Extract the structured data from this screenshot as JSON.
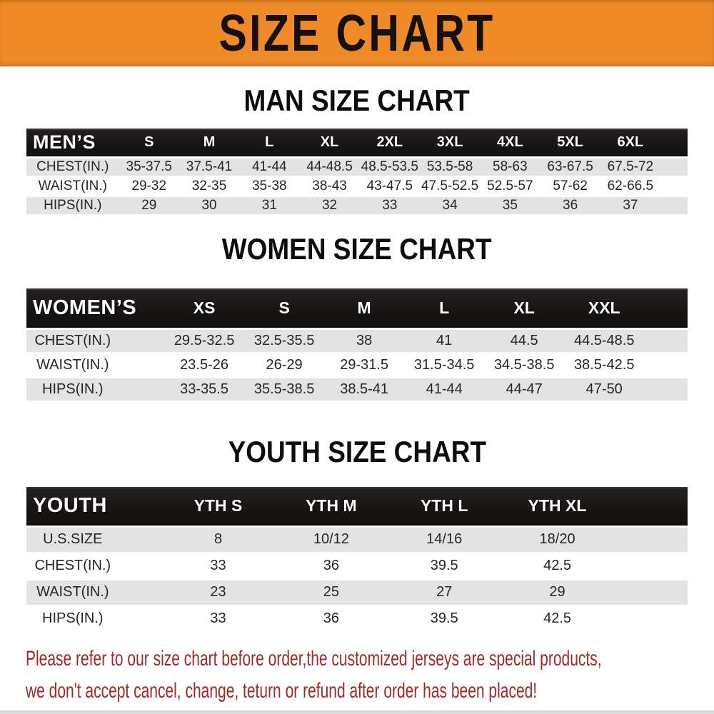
{
  "banner": {
    "title": "SIZE CHART"
  },
  "palette": {
    "banner_orange": "#ee8b28",
    "header_bar_black": "#1b1717",
    "row_stripe_gray": "#e3e3e3",
    "value_text": "#262626",
    "warning_red": "#a02a26"
  },
  "sections": [
    {
      "id": "men",
      "heading": "MAN SIZE CHART",
      "header_label": "MEN’S",
      "columns": [
        "S",
        "M",
        "L",
        "XL",
        "2XL",
        "3XL",
        "4XL",
        "5XL",
        "6XL"
      ],
      "rows": [
        {
          "label": "CHEST(IN.)",
          "values": [
            "35-37.5",
            "37.5-41",
            "41-44",
            "44-48.5",
            "48.5-53.5",
            "53.5-58",
            "58-63",
            "63-67.5",
            "67.5-72"
          ]
        },
        {
          "label": "WAIST(IN.)",
          "values": [
            "29-32",
            "32-35",
            "35-38",
            "38-43",
            "43-47.5",
            "47.5-52.5",
            "52.5-57",
            "57-62",
            "62-66.5"
          ]
        },
        {
          "label": "HIPS(IN.)",
          "values": [
            "29",
            "30",
            "31",
            "32",
            "33",
            "34",
            "35",
            "36",
            "37"
          ]
        }
      ]
    },
    {
      "id": "women",
      "heading": "WOMEN SIZE CHART",
      "header_label": "WOMEN’S",
      "columns": [
        "XS",
        "S",
        "M",
        "L",
        "XL",
        "XXL"
      ],
      "rows": [
        {
          "label": "CHEST(IN.)",
          "values": [
            "29.5-32.5",
            "32.5-35.5",
            "38",
            "41",
            "44.5",
            "44.5-48.5"
          ]
        },
        {
          "label": "WAIST(IN.)",
          "values": [
            "23.5-26",
            "26-29",
            "29-31.5",
            "31.5-34.5",
            "34.5-38.5",
            "38.5-42.5"
          ]
        },
        {
          "label": "HIPS(IN.)",
          "values": [
            "33-35.5",
            "35.5-38.5",
            "38.5-41",
            "41-44",
            "44-47",
            "47-50"
          ]
        }
      ]
    },
    {
      "id": "youth",
      "heading": "YOUTH SIZE CHART",
      "header_label": "YOUTH",
      "columns": [
        "YTH S",
        "YTH M",
        "YTH L",
        "YTH XL"
      ],
      "rows": [
        {
          "label": "U.S.SIZE",
          "values": [
            "8",
            "10/12",
            "14/16",
            "18/20"
          ]
        },
        {
          "label": "CHEST(IN.)",
          "values": [
            "33",
            "36",
            "39.5",
            "42.5"
          ]
        },
        {
          "label": "WAIST(IN.)",
          "values": [
            "23",
            "25",
            "27",
            "29"
          ]
        },
        {
          "label": "HIPS(IN.)",
          "values": [
            "33",
            "36",
            "39.5",
            "42.5"
          ]
        }
      ]
    }
  ],
  "footer": {
    "lines": [
      "Please refer to our size chart before order,the customized jerseys are special products,",
      "we don't accept cancel, change, teturn or refund after order has been placed!"
    ]
  },
  "chart_data": [
    {
      "type": "table",
      "title": "MAN SIZE CHART",
      "columns": [
        "MEN’S",
        "S",
        "M",
        "L",
        "XL",
        "2XL",
        "3XL",
        "4XL",
        "5XL",
        "6XL"
      ],
      "rows": [
        [
          "CHEST(IN.)",
          "35-37.5",
          "37.5-41",
          "41-44",
          "44-48.5",
          "48.5-53.5",
          "53.5-58",
          "58-63",
          "63-67.5",
          "67.5-72"
        ],
        [
          "WAIST(IN.)",
          "29-32",
          "32-35",
          "35-38",
          "38-43",
          "43-47.5",
          "47.5-52.5",
          "52.5-57",
          "57-62",
          "62-66.5"
        ],
        [
          "HIPS(IN.)",
          "29",
          "30",
          "31",
          "32",
          "33",
          "34",
          "35",
          "36",
          "37"
        ]
      ]
    },
    {
      "type": "table",
      "title": "WOMEN SIZE CHART",
      "columns": [
        "WOMEN’S",
        "XS",
        "S",
        "M",
        "L",
        "XL",
        "XXL"
      ],
      "rows": [
        [
          "CHEST(IN.)",
          "29.5-32.5",
          "32.5-35.5",
          "38",
          "41",
          "44.5",
          "44.5-48.5"
        ],
        [
          "WAIST(IN.)",
          "23.5-26",
          "26-29",
          "29-31.5",
          "31.5-34.5",
          "34.5-38.5",
          "38.5-42.5"
        ],
        [
          "HIPS(IN.)",
          "33-35.5",
          "35.5-38.5",
          "38.5-41",
          "41-44",
          "44-47",
          "47-50"
        ]
      ]
    },
    {
      "type": "table",
      "title": "YOUTH SIZE CHART",
      "columns": [
        "YOUTH",
        "YTH S",
        "YTH M",
        "YTH L",
        "YTH XL"
      ],
      "rows": [
        [
          "U.S.SIZE",
          "8",
          "10/12",
          "14/16",
          "18/20"
        ],
        [
          "CHEST(IN.)",
          "33",
          "36",
          "39.5",
          "42.5"
        ],
        [
          "WAIST(IN.)",
          "23",
          "25",
          "27",
          "29"
        ],
        [
          "HIPS(IN.)",
          "33",
          "36",
          "39.5",
          "42.5"
        ]
      ]
    }
  ]
}
